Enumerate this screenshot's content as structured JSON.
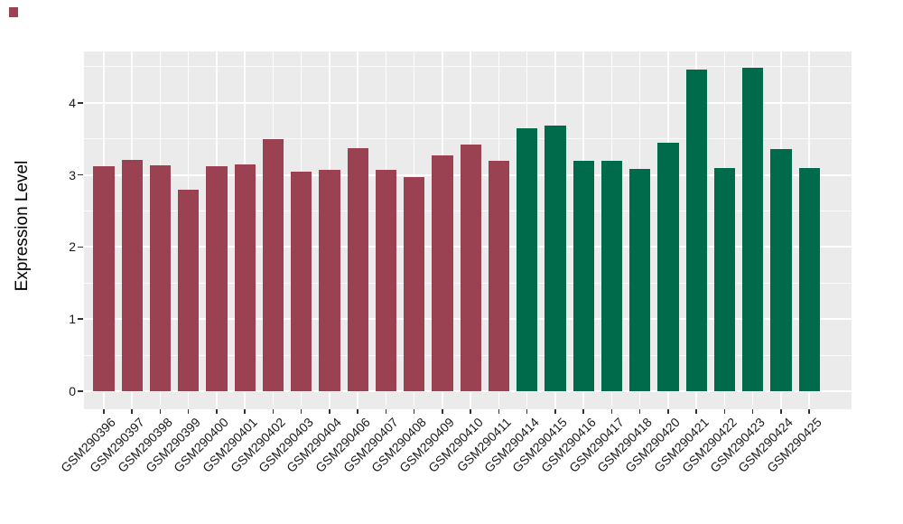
{
  "chart_data": {
    "type": "bar",
    "title": "",
    "xlabel": "",
    "ylabel": "Expression Level",
    "categories": [
      "GSM290396",
      "GSM290397",
      "GSM290398",
      "GSM290399",
      "GSM290400",
      "GSM290401",
      "GSM290402",
      "GSM290403",
      "GSM290404",
      "GSM290406",
      "GSM290407",
      "GSM290408",
      "GSM290409",
      "GSM290410",
      "GSM290411",
      "GSM290414",
      "GSM290415",
      "GSM290416",
      "GSM290417",
      "GSM290418",
      "GSM290420",
      "GSM290421",
      "GSM290422",
      "GSM290423",
      "GSM290424",
      "GSM290425"
    ],
    "values": [
      3.12,
      3.21,
      3.13,
      2.8,
      3.12,
      3.15,
      3.5,
      3.05,
      3.07,
      3.37,
      3.07,
      2.97,
      3.27,
      3.42,
      3.2,
      3.65,
      3.68,
      3.2,
      3.2,
      3.08,
      3.44,
      4.46,
      3.1,
      4.49,
      3.36,
      3.1
    ],
    "groups": [
      "red",
      "red",
      "red",
      "red",
      "red",
      "red",
      "red",
      "red",
      "red",
      "red",
      "red",
      "red",
      "red",
      "red",
      "red",
      "green",
      "green",
      "green",
      "green",
      "green",
      "green",
      "green",
      "green",
      "green",
      "green",
      "green"
    ],
    "group_colors": {
      "red": "#9A4252",
      "green": "#006B4B"
    },
    "yticks": [
      "0",
      "1",
      "2",
      "3",
      "4"
    ],
    "ytick_values": [
      0,
      1,
      2,
      3,
      4
    ],
    "minor_ytick_values": [
      0.5,
      1.5,
      2.5,
      3.5,
      4.5
    ],
    "ylim": [
      -0.24,
      4.73
    ],
    "legend": "none",
    "panel_background": "#EBEBEB",
    "gridline_color": "#FFFFFF",
    "tick_color": "#333333",
    "corner_mark_color": "#9A4252"
  }
}
